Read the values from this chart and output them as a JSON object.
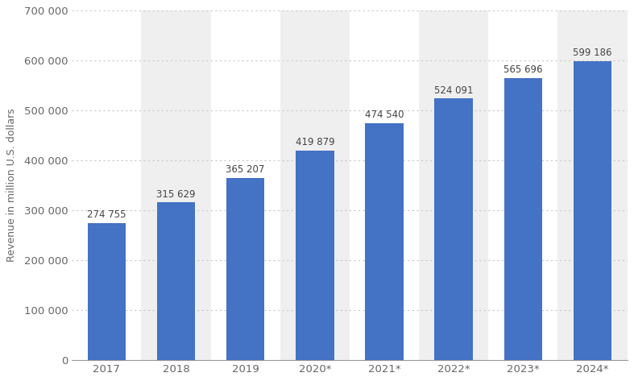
{
  "categories": [
    "2017",
    "2018",
    "2019",
    "2020*",
    "2021*",
    "2022*",
    "2023*",
    "2024*"
  ],
  "values": [
    274755,
    315629,
    365207,
    419879,
    474540,
    524091,
    565696,
    599186
  ],
  "labels": [
    "274 755",
    "315 629",
    "365 207",
    "419 879",
    "474 540",
    "524 091",
    "565 696",
    "599 186"
  ],
  "bar_color": "#4472c4",
  "background_color": "#ffffff",
  "plot_bg_color": "#ffffff",
  "stripe_color": "#efefef",
  "ylabel": "Revenue in million U.S. dollars",
  "ylim": [
    0,
    700000
  ],
  "yticks": [
    0,
    100000,
    200000,
    300000,
    400000,
    500000,
    600000,
    700000
  ],
  "ytick_labels": [
    "0",
    "100 000",
    "200 000",
    "300 000",
    "400 000",
    "500 000",
    "600 000",
    "700 000"
  ],
  "grid_color": "#c8c8c8",
  "label_fontsize": 8.5,
  "tick_fontsize": 9.5,
  "ylabel_fontsize": 9,
  "bar_width": 0.55
}
